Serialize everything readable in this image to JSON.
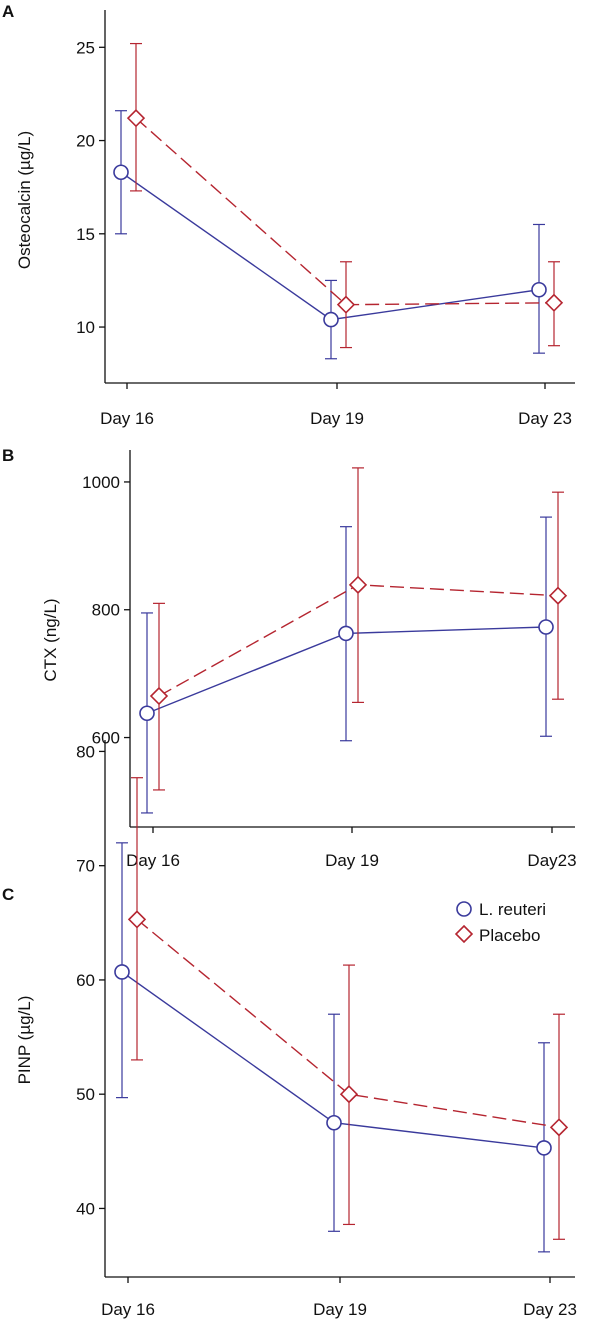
{
  "colors": {
    "reuteri": "#3a3a9c",
    "placebo": "#b52530",
    "axis": "#111111"
  },
  "legend": [
    {
      "name": "L. reuteri",
      "marker": "circle",
      "color": "#3a3a9c"
    },
    {
      "name": "Placebo",
      "marker": "diamond",
      "color": "#b52530"
    }
  ],
  "chart_data": [
    {
      "panel": "A",
      "type": "line",
      "categories": [
        "Day 16",
        "Day 19",
        "Day 23"
      ],
      "ylabel": "Osteocalcin  (µg/L)",
      "ylim": [
        7,
        27
      ],
      "yticks": [
        10,
        15,
        20,
        25
      ],
      "series": [
        {
          "name": "L. reuteri",
          "values": [
            18.3,
            10.4,
            12.0
          ],
          "err_low": [
            15.0,
            8.3,
            8.6
          ],
          "err_high": [
            21.6,
            12.5,
            15.5
          ]
        },
        {
          "name": "Placebo",
          "values": [
            21.2,
            11.2,
            11.3
          ],
          "err_low": [
            17.3,
            8.9,
            9.0
          ],
          "err_high": [
            25.2,
            13.5,
            13.5
          ]
        }
      ]
    },
    {
      "panel": "B",
      "type": "line",
      "categories": [
        "Day 16",
        "Day 19",
        "Day23"
      ],
      "ylabel": "CTX (ng/L)",
      "ylim": [
        460,
        1050
      ],
      "yticks": [
        600,
        800,
        1000
      ],
      "series": [
        {
          "name": "L. reuteri",
          "values": [
            638,
            763,
            773
          ],
          "err_low": [
            482,
            595,
            602
          ],
          "err_high": [
            795,
            930,
            945
          ]
        },
        {
          "name": "Placebo",
          "values": [
            665,
            839,
            822
          ],
          "err_low": [
            518,
            655,
            660
          ],
          "err_high": [
            810,
            1022,
            984
          ]
        }
      ]
    },
    {
      "panel": "C",
      "type": "line",
      "categories": [
        "Day 16",
        "Day 19",
        "Day 23"
      ],
      "ylabel": "PINP (µg/L)",
      "ylim": [
        34,
        81
      ],
      "yticks": [
        40,
        50,
        60,
        70,
        80
      ],
      "legend_position": "top-right",
      "series": [
        {
          "name": "L. reuteri",
          "values": [
            60.7,
            47.5,
            45.3
          ],
          "err_low": [
            49.7,
            38.0,
            36.2
          ],
          "err_high": [
            72.0,
            57.0,
            54.5
          ]
        },
        {
          "name": "Placebo",
          "values": [
            65.3,
            50.0,
            47.1
          ],
          "err_low": [
            53.0,
            38.6,
            37.3
          ],
          "err_high": [
            77.7,
            61.3,
            57.0
          ]
        }
      ]
    }
  ]
}
